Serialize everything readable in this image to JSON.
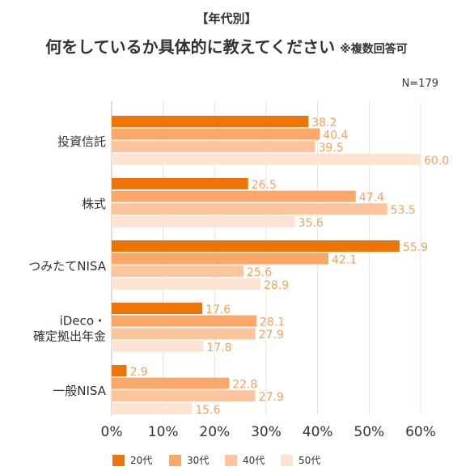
{
  "header": {
    "subtitle": "【年代別】",
    "title": "何をしているか具体的に教えてください",
    "note": "※複数回答可",
    "sample": "N=179"
  },
  "chart_data": {
    "type": "bar",
    "orientation": "horizontal",
    "categories": [
      [
        "投資信託"
      ],
      [
        "株式"
      ],
      [
        "つみたてNISA"
      ],
      [
        "iDeco・",
        "確定拠出年金"
      ],
      [
        "一般NISA"
      ]
    ],
    "series": [
      {
        "name": "20代",
        "color": "#EE7406",
        "values": [
          38.2,
          26.5,
          55.9,
          17.6,
          2.9
        ]
      },
      {
        "name": "30代",
        "color": "#FAA76A",
        "values": [
          40.4,
          47.4,
          42.1,
          28.1,
          22.8
        ]
      },
      {
        "name": "40代",
        "color": "#FCC59E",
        "values": [
          39.5,
          53.5,
          25.6,
          27.9,
          27.9
        ]
      },
      {
        "name": "50代",
        "color": "#FDE3D2",
        "values": [
          60.0,
          35.6,
          28.9,
          17.8,
          15.6
        ]
      }
    ],
    "value_label_color": "#F7A15C",
    "xlim": [
      0,
      60
    ],
    "xticks": [
      "0%",
      "10%",
      "20%",
      "30%",
      "40%",
      "50%",
      "60%"
    ],
    "grid": true,
    "legend_position": "bottom"
  }
}
